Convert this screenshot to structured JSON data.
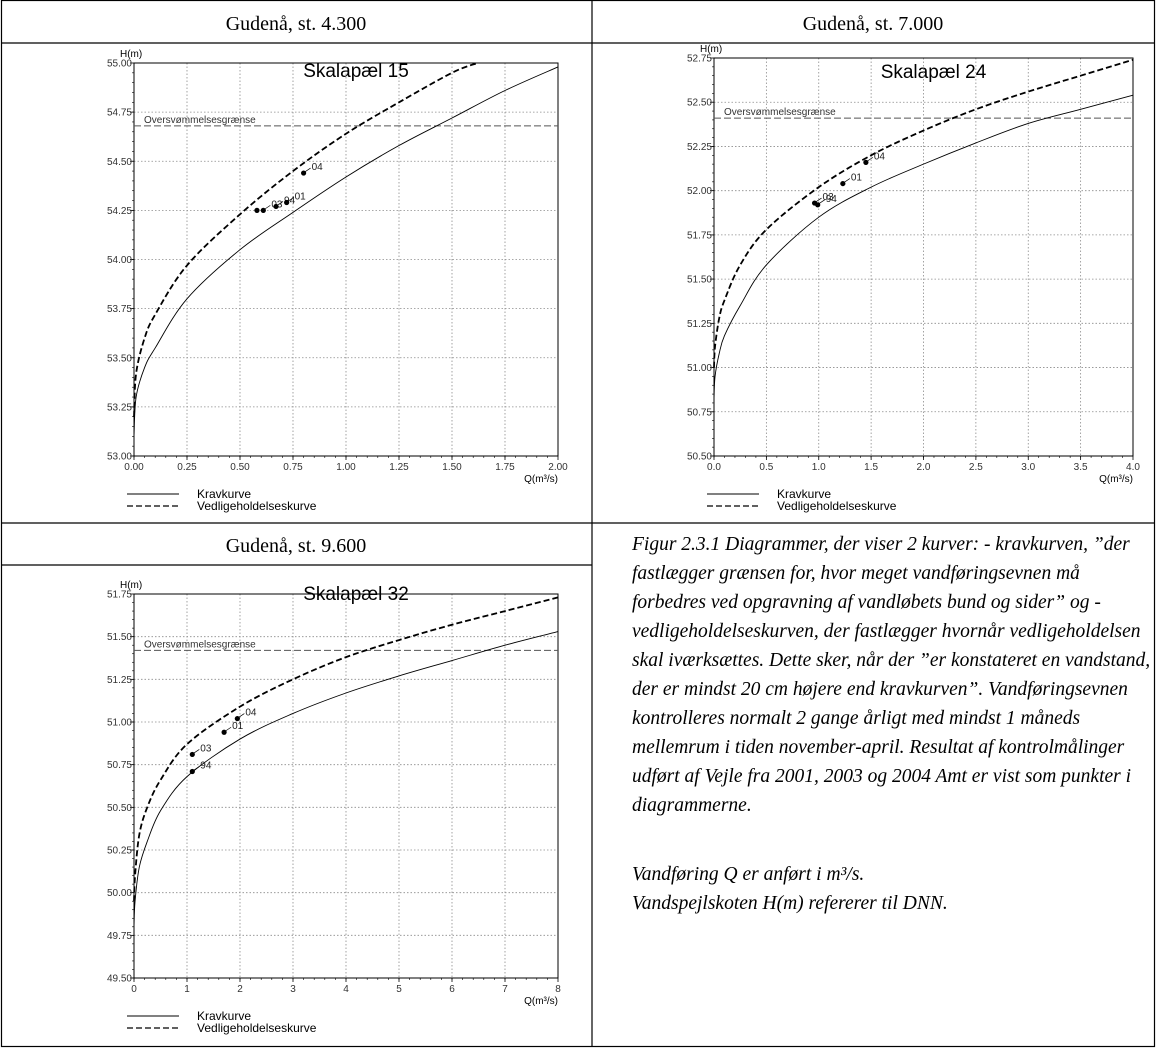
{
  "table": {
    "headers": [
      "Gudenå, st. 4.300",
      "Gudenå, st. 7.000",
      "Gudenå, st. 9.600"
    ]
  },
  "caption": {
    "paragraph": "Figur 2.3.1 Diagrammer, der viser 2 kurver: - kravkurven, ”der fastlægger grænsen for, hvor meget vandføringsevnen må forbedres ved opgravning af vandløbets bund og sider” og - vedligeholdelseskurven, der fastlægger hvornår vedligeholdelsen skal iværksættes. Dette sker, når der ”er konstateret en vandstand, der er mindst 20 cm højere end kravkurven”. Vandføringsevnen kontrolleres normalt 2 gange årligt med mindst 1 måneds mellemrum i tiden november-april. Resultat af kontrolmålinger udført af Vejle fra 2001, 2003 og 2004 Amt er vist som punkter i diagrammerne.",
    "note_line1": "Vandføring Q er anført i m³/s.",
    "note_line2": "Vandspejlskoten H(m) refererer til DNN."
  },
  "colors": {
    "line": "#000000",
    "grid": "#8c8c8c",
    "threshold": "#555555"
  },
  "chart_data": [
    {
      "type": "line",
      "title": "Skalapæl 15",
      "xlabel": "Q(m³/s)",
      "ylabel": "H(m)",
      "xlim": [
        0,
        2
      ],
      "ylim": [
        53.0,
        55.0
      ],
      "xticks": [
        0,
        0.25,
        0.5,
        0.75,
        1.0,
        1.25,
        1.5,
        1.75,
        2.0
      ],
      "xtick_labels": [
        "0.00",
        "0.25",
        "0.50",
        "0.75",
        "1.00",
        "1.25",
        "1.50",
        "1.75",
        "2.00"
      ],
      "yticks": [
        53.0,
        53.25,
        53.5,
        53.75,
        54.0,
        54.25,
        54.5,
        54.75,
        55.0
      ],
      "ytick_labels": [
        "53.00",
        "53.25",
        "53.50",
        "53.75",
        "54.00",
        "54.25",
        "54.50",
        "54.75",
        "55.00"
      ],
      "grid": true,
      "legend": "bottom-left",
      "series": [
        {
          "name": "Kravkurve",
          "style": "solid",
          "x": [
            0,
            0.01,
            0.05,
            0.1,
            0.25,
            0.5,
            0.75,
            1.0,
            1.25,
            1.5,
            1.75,
            2.0
          ],
          "y": [
            53.1,
            53.3,
            53.45,
            53.55,
            53.8,
            54.05,
            54.24,
            54.42,
            54.58,
            54.72,
            54.86,
            54.98
          ]
        },
        {
          "name": "Vedligeholdelseskurve",
          "style": "dashed",
          "x": [
            0,
            0.01,
            0.05,
            0.1,
            0.25,
            0.5,
            0.75,
            1.0,
            1.25,
            1.5,
            1.62
          ],
          "y": [
            53.2,
            53.42,
            53.6,
            53.72,
            53.97,
            54.23,
            54.45,
            54.64,
            54.8,
            54.95,
            55.0
          ]
        }
      ],
      "threshold": {
        "label": "Oversvømmelsesgrænse",
        "y": 54.68
      },
      "points": [
        {
          "label": "",
          "x": 0.58,
          "y": 54.25
        },
        {
          "label": "03",
          "x": 0.61,
          "y": 54.25
        },
        {
          "label": "94",
          "x": 0.67,
          "y": 54.27
        },
        {
          "label": "01",
          "x": 0.72,
          "y": 54.29
        },
        {
          "label": "04",
          "x": 0.8,
          "y": 54.44
        }
      ]
    },
    {
      "type": "line",
      "title": "Skalapæl 24",
      "xlabel": "Q(m³/s)",
      "ylabel": "H(m)",
      "xlim": [
        0,
        4
      ],
      "ylim": [
        50.5,
        52.75
      ],
      "xticks": [
        0,
        0.5,
        1.0,
        1.5,
        2.0,
        2.5,
        3.0,
        3.5,
        4.0
      ],
      "xtick_labels": [
        "0.0",
        "0.5",
        "1.0",
        "1.5",
        "2.0",
        "2.5",
        "3.0",
        "3.5",
        "4.0"
      ],
      "yticks": [
        50.5,
        50.75,
        51.0,
        51.25,
        51.5,
        51.75,
        52.0,
        52.25,
        52.5,
        52.75
      ],
      "ytick_labels": [
        "50.50",
        "50.75",
        "51.00",
        "51.25",
        "51.50",
        "51.75",
        "52.00",
        "52.25",
        "52.50",
        "52.75"
      ],
      "grid": true,
      "legend": "bottom-left",
      "series": [
        {
          "name": "Kravkurve",
          "style": "solid",
          "x": [
            0,
            0.01,
            0.05,
            0.1,
            0.25,
            0.5,
            1.0,
            1.5,
            2.0,
            2.5,
            3.0,
            3.5,
            4.0
          ],
          "y": [
            50.82,
            50.95,
            51.08,
            51.18,
            51.35,
            51.58,
            51.85,
            52.02,
            52.15,
            52.27,
            52.38,
            52.46,
            52.54
          ]
        },
        {
          "name": "Vedligeholdelseskurve",
          "style": "dashed",
          "x": [
            0,
            0.01,
            0.05,
            0.1,
            0.25,
            0.5,
            1.0,
            1.5,
            2.0,
            2.5,
            3.0,
            3.5,
            4.0
          ],
          "y": [
            51.0,
            51.12,
            51.28,
            51.38,
            51.58,
            51.78,
            52.02,
            52.2,
            52.34,
            52.46,
            52.56,
            52.65,
            52.74
          ]
        }
      ],
      "threshold": {
        "label": "Oversvømmelsesgrænse",
        "y": 52.41
      },
      "points": [
        {
          "label": "03",
          "x": 0.96,
          "y": 51.93
        },
        {
          "label": "94",
          "x": 0.99,
          "y": 51.92
        },
        {
          "label": "01",
          "x": 1.23,
          "y": 52.04
        },
        {
          "label": "04",
          "x": 1.45,
          "y": 52.16
        }
      ]
    },
    {
      "type": "line",
      "title": "Skalapæl 32",
      "xlabel": "Q(m³/s)",
      "ylabel": "H(m)",
      "xlim": [
        0,
        8
      ],
      "ylim": [
        49.5,
        51.75
      ],
      "xticks": [
        0,
        1,
        2,
        3,
        4,
        5,
        6,
        7,
        8
      ],
      "xtick_labels": [
        "0",
        "1",
        "2",
        "3",
        "4",
        "5",
        "6",
        "7",
        "8"
      ],
      "yticks": [
        49.5,
        49.75,
        50.0,
        50.25,
        50.5,
        50.75,
        51.0,
        51.25,
        51.5,
        51.75
      ],
      "ytick_labels": [
        "49.50",
        "49.75",
        "50.00",
        "50.25",
        "50.50",
        "50.75",
        "51.00",
        "51.25",
        "51.50",
        "51.75"
      ],
      "grid": true,
      "legend": "bottom-left",
      "series": [
        {
          "name": "Kravkurve",
          "style": "solid",
          "x": [
            0,
            0.02,
            0.1,
            0.25,
            0.5,
            1.0,
            2.0,
            3.0,
            4.0,
            5.0,
            6.0,
            7.0,
            8.0
          ],
          "y": [
            49.8,
            49.95,
            50.15,
            50.3,
            50.48,
            50.68,
            50.9,
            51.05,
            51.17,
            51.27,
            51.36,
            51.45,
            51.53
          ]
        },
        {
          "name": "Vedligeholdelseskurve",
          "style": "dashed",
          "x": [
            0,
            0.02,
            0.1,
            0.25,
            0.5,
            1.0,
            2.0,
            3.0,
            4.0,
            5.0,
            6.0,
            7.0,
            8.0
          ],
          "y": [
            49.95,
            50.1,
            50.34,
            50.5,
            50.66,
            50.87,
            51.09,
            51.25,
            51.38,
            51.48,
            51.57,
            51.65,
            51.73
          ]
        }
      ],
      "threshold": {
        "label": "Oversvømmelsesgrænse",
        "y": 51.42
      },
      "points": [
        {
          "label": "94",
          "x": 1.1,
          "y": 50.71
        },
        {
          "label": "03",
          "x": 1.1,
          "y": 50.81
        },
        {
          "label": "01",
          "x": 1.7,
          "y": 50.94
        },
        {
          "label": "04",
          "x": 1.95,
          "y": 51.02
        }
      ]
    }
  ]
}
